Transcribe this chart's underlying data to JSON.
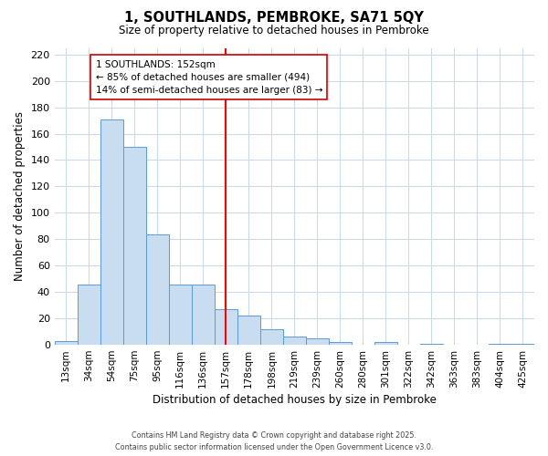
{
  "title": "1, SOUTHLANDS, PEMBROKE, SA71 5QY",
  "subtitle": "Size of property relative to detached houses in Pembroke",
  "xlabel": "Distribution of detached houses by size in Pembroke",
  "ylabel": "Number of detached properties",
  "bar_labels": [
    "13sqm",
    "34sqm",
    "54sqm",
    "75sqm",
    "95sqm",
    "116sqm",
    "136sqm",
    "157sqm",
    "178sqm",
    "198sqm",
    "219sqm",
    "239sqm",
    "260sqm",
    "280sqm",
    "301sqm",
    "322sqm",
    "342sqm",
    "363sqm",
    "383sqm",
    "404sqm",
    "425sqm"
  ],
  "bar_values": [
    3,
    46,
    171,
    150,
    84,
    46,
    46,
    27,
    22,
    12,
    6,
    5,
    2,
    0,
    2,
    0,
    1,
    0,
    0,
    1,
    1
  ],
  "bar_color": "#c9ddf0",
  "bar_edge_color": "#5b9bd5",
  "vline_index": 7,
  "vline_color": "red",
  "ylim": [
    0,
    225
  ],
  "yticks": [
    0,
    20,
    40,
    60,
    80,
    100,
    120,
    140,
    160,
    180,
    200,
    220
  ],
  "annotation_title": "1 SOUTHLANDS: 152sqm",
  "annotation_line1": "← 85% of detached houses are smaller (494)",
  "annotation_line2": "14% of semi-detached houses are larger (83) →",
  "annotation_box_color": "#ffffff",
  "annotation_box_edge": "#cc0000",
  "footer_line1": "Contains HM Land Registry data © Crown copyright and database right 2025.",
  "footer_line2": "Contains public sector information licensed under the Open Government Licence v3.0.",
  "background_color": "#ffffff",
  "grid_color": "#c8d8ec"
}
